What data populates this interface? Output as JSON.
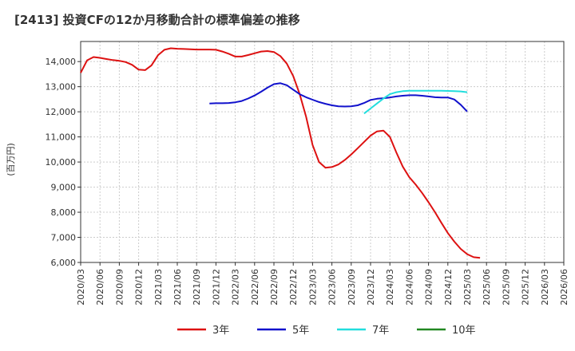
{
  "chart_data": {
    "type": "line",
    "title": "[2413]  投資CFの12か月移動合計の標準偏差の推移",
    "ylabel": "(百万円)",
    "xlabel": "",
    "ylim": [
      6000,
      14800
    ],
    "yticks": [
      6000,
      7000,
      8000,
      9000,
      10000,
      11000,
      12000,
      13000,
      14000
    ],
    "ytick_labels": [
      "6,000",
      "7,000",
      "8,000",
      "9,000",
      "10,000",
      "11,000",
      "12,000",
      "13,000",
      "14,000"
    ],
    "x_range": [
      0,
      75
    ],
    "x_ticks": [
      0,
      3,
      6,
      9,
      12,
      15,
      18,
      21,
      24,
      27,
      30,
      33,
      36,
      39,
      42,
      45,
      48,
      51,
      54,
      57,
      60,
      63,
      66,
      69,
      72,
      75
    ],
    "x_tick_labels": [
      "2020/03",
      "2020/06",
      "2020/09",
      "2020/12",
      "2021/03",
      "2021/06",
      "2021/09",
      "2021/12",
      "2022/03",
      "2022/06",
      "2022/09",
      "2022/12",
      "2023/03",
      "2023/06",
      "2023/09",
      "2023/12",
      "2024/03",
      "2024/06",
      "2024/09",
      "2024/12",
      "2025/03",
      "2025/06",
      "2025/09",
      "2025/12",
      "2026/03",
      "2026/06"
    ],
    "grid": true,
    "legend_position": "bottom",
    "series": [
      {
        "name": "3年",
        "color": "#dd1111",
        "start": 0,
        "values": [
          13550,
          14050,
          14180,
          14150,
          14100,
          14060,
          14030,
          13980,
          13870,
          13680,
          13660,
          13850,
          14250,
          14470,
          14530,
          14510,
          14500,
          14490,
          14480,
          14480,
          14480,
          14470,
          14400,
          14310,
          14200,
          14200,
          14260,
          14330,
          14400,
          14420,
          14380,
          14220,
          13920,
          13420,
          12700,
          11800,
          10680,
          10000,
          9770,
          9800,
          9900,
          10080,
          10300,
          10550,
          10800,
          11050,
          11220,
          11250,
          11000,
          10380,
          9820,
          9400,
          9100,
          8770,
          8400,
          8000,
          7580,
          7170,
          6830,
          6540,
          6330,
          6210,
          6180
        ]
      },
      {
        "name": "5年",
        "color": "#1111cc",
        "start": 20,
        "values": [
          12330,
          12340,
          12340,
          12350,
          12380,
          12430,
          12530,
          12650,
          12800,
          12960,
          13100,
          13140,
          13060,
          12880,
          12700,
          12580,
          12480,
          12390,
          12320,
          12260,
          12220,
          12210,
          12220,
          12260,
          12350,
          12470,
          12520,
          12540,
          12570,
          12610,
          12640,
          12660,
          12660,
          12640,
          12610,
          12580,
          12570,
          12570,
          12490,
          12280,
          12010
        ]
      },
      {
        "name": "7年",
        "color": "#22dddd",
        "start": 44,
        "values": [
          11930,
          12130,
          12330,
          12530,
          12700,
          12780,
          12820,
          12840,
          12840,
          12840,
          12840,
          12840,
          12840,
          12830,
          12820,
          12810,
          12780
        ]
      },
      {
        "name": "10年",
        "color": "#228822",
        "start": 0,
        "values": []
      }
    ]
  }
}
